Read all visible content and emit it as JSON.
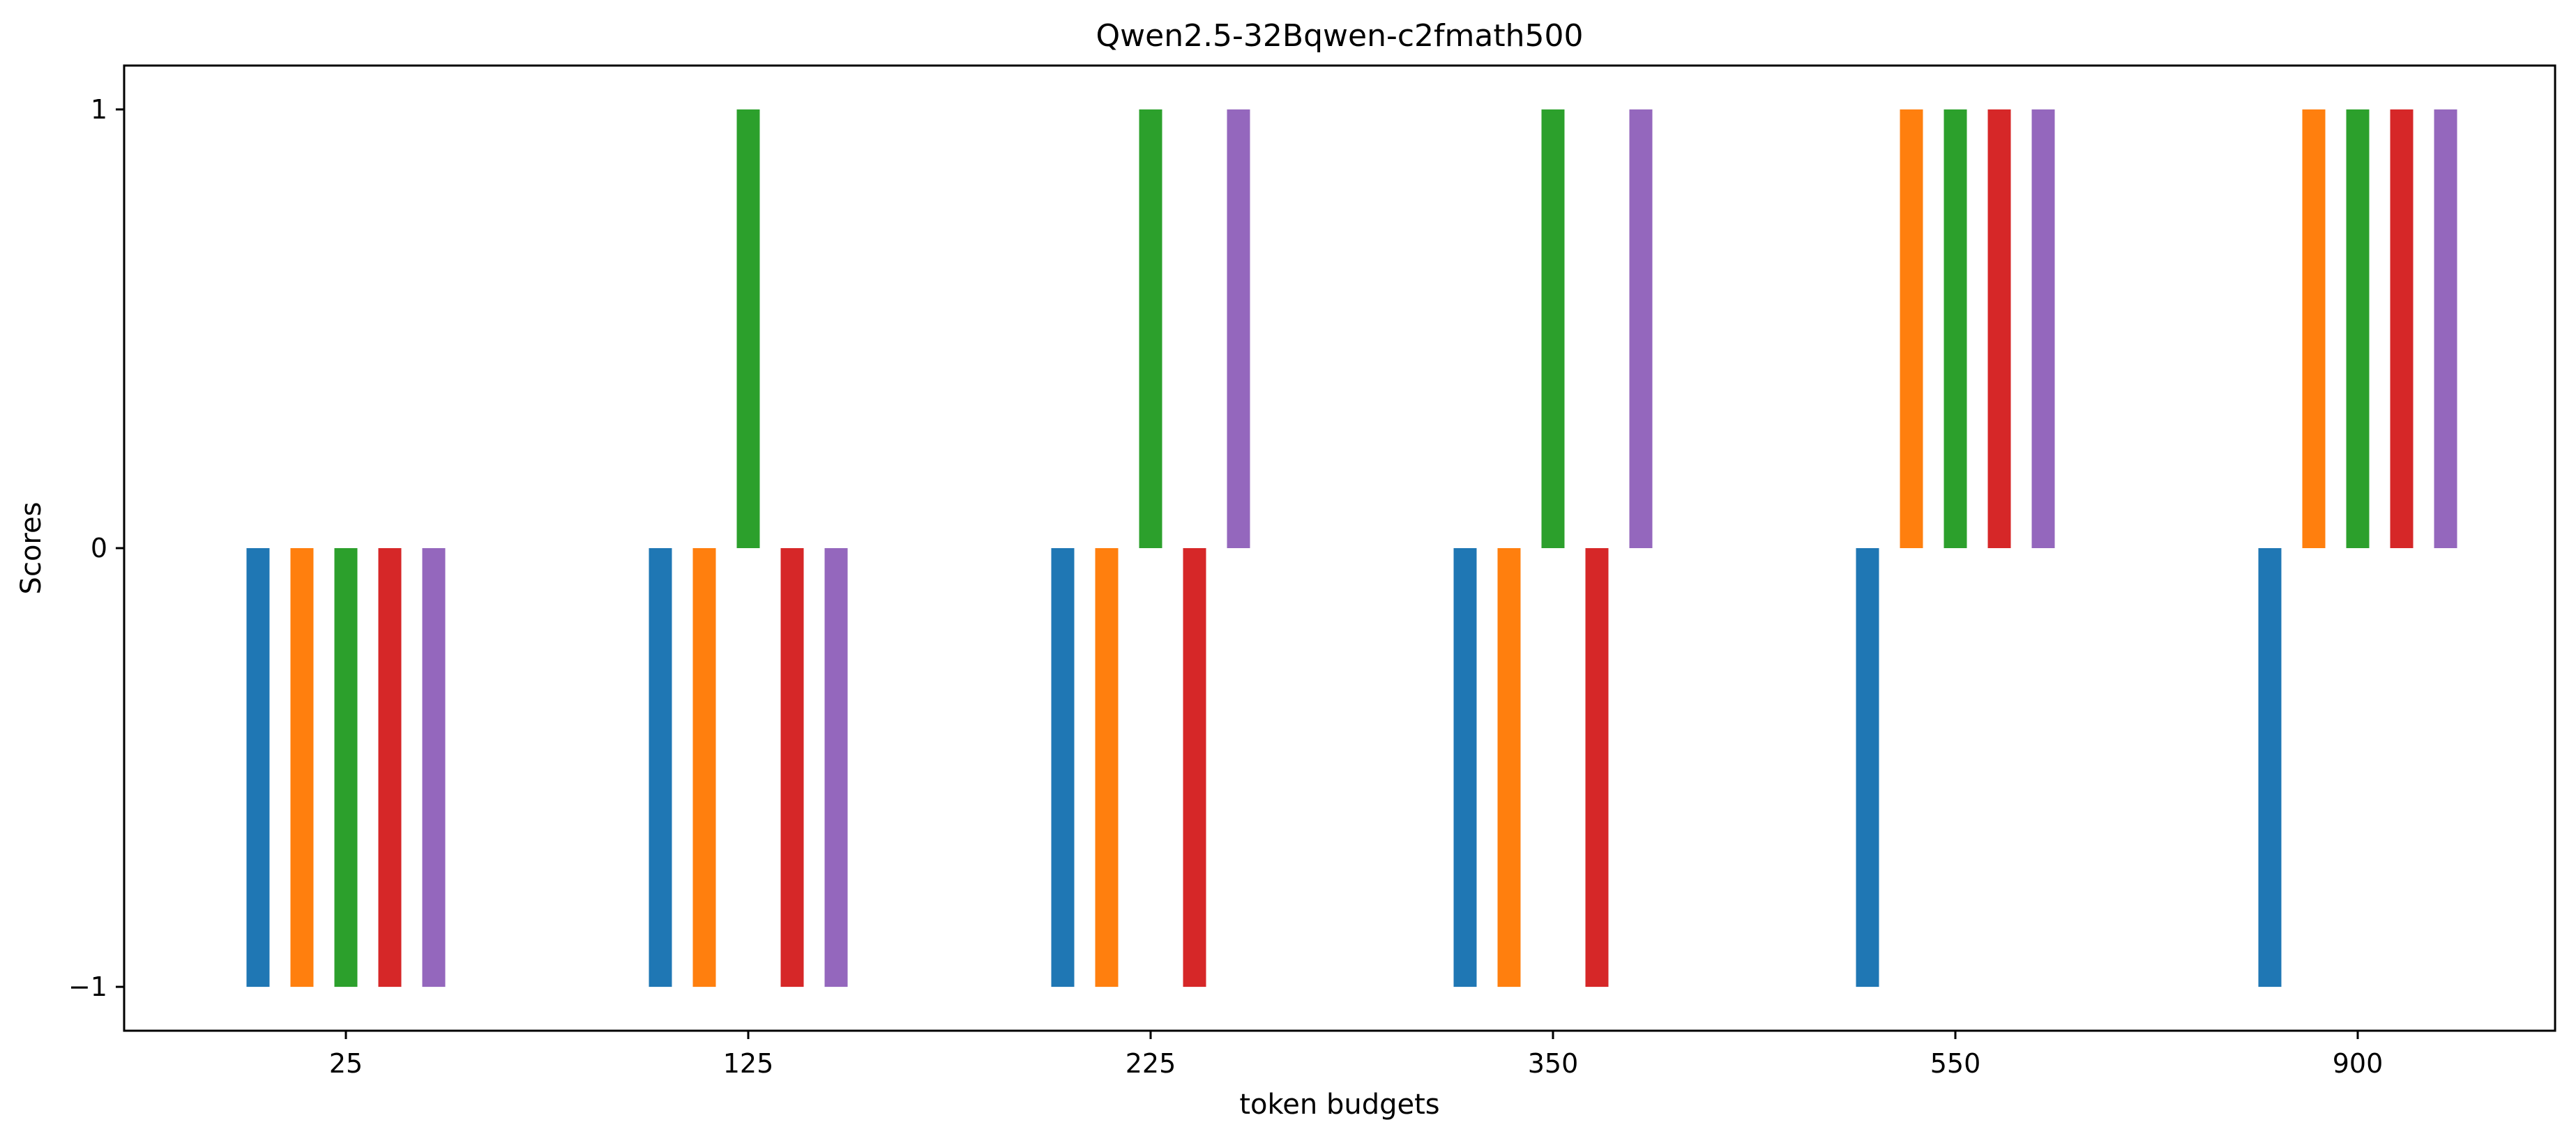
{
  "chart_data": {
    "type": "bar",
    "title": "Qwen2.5-32Bqwen-c2fmath500",
    "xlabel": "token budgets",
    "ylabel": "Scores",
    "categories": [
      "25",
      "125",
      "225",
      "350",
      "550",
      "900"
    ],
    "ylim": [
      -1.1,
      1.1
    ],
    "yticks": [
      -1,
      0,
      1
    ],
    "ytick_labels": [
      "−1",
      "0",
      "1"
    ],
    "grid": false,
    "legend": "none",
    "series": [
      {
        "color": "#1f77b4",
        "values": [
          -1,
          -1,
          -1,
          -1,
          -1,
          -1
        ]
      },
      {
        "color": "#ff7f0e",
        "values": [
          -1,
          -1,
          -1,
          -1,
          1,
          1
        ]
      },
      {
        "color": "#2ca02c",
        "values": [
          -1,
          1,
          1,
          1,
          1,
          1
        ]
      },
      {
        "color": "#d62728",
        "values": [
          -1,
          -1,
          -1,
          -1,
          1,
          1
        ]
      },
      {
        "color": "#9467bd",
        "values": [
          -1,
          -1,
          1,
          1,
          1,
          1
        ]
      }
    ]
  }
}
